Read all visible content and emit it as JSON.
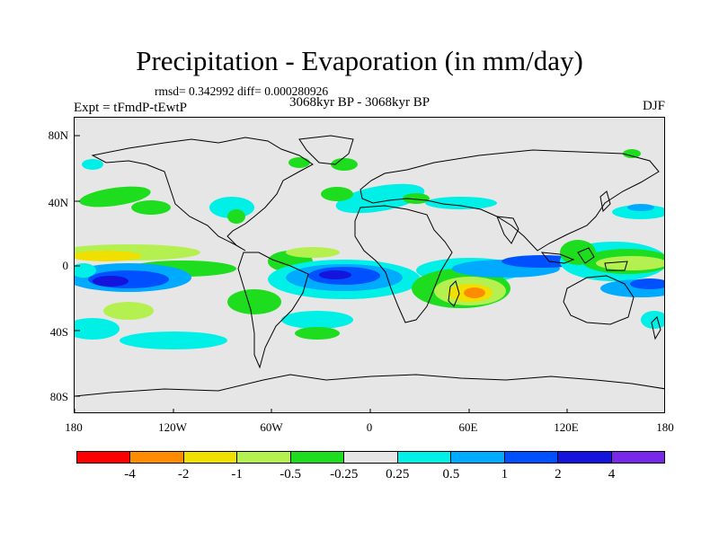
{
  "header": {
    "title": "Precipitation - Evaporation (in mm/day)",
    "stats": "rmsd= 0.342992 diff= 0.000280926",
    "period": "3068kyr BP - 3068kyr BP",
    "experiment": "Expt = tFmdP-tEwtP",
    "season": "DJF"
  },
  "axes": {
    "lat_labels": [
      "80N",
      "40N",
      "0",
      "40S",
      "80S"
    ],
    "lon_labels": [
      "180",
      "120W",
      "60W",
      "0",
      "60E",
      "120E",
      "180"
    ]
  },
  "colorbar": {
    "colors": [
      "#ff0000",
      "#ff8c00",
      "#f0e000",
      "#b4f050",
      "#1edc1e",
      "#e6e6e6",
      "#00f0e8",
      "#00aaff",
      "#0050ff",
      "#1414dc",
      "#7828e6"
    ],
    "labels": [
      "-4",
      "-2",
      "-1",
      "-0.5",
      "-0.25",
      "0.25",
      "0.5",
      "1",
      "2",
      "4"
    ]
  },
  "map_colors": {
    "background": "#e6e6e6",
    "coast": "#000000"
  }
}
